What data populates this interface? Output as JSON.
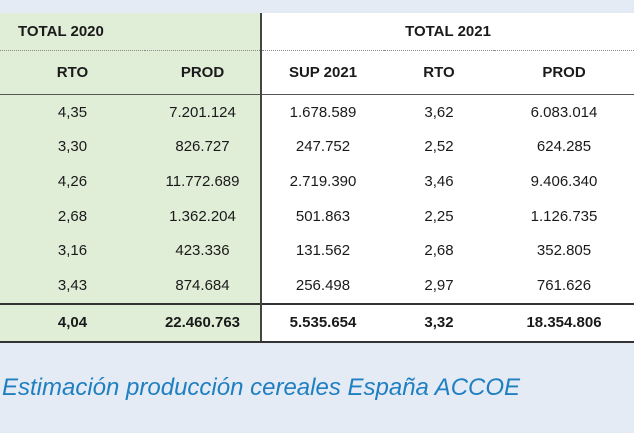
{
  "headers": {
    "group_2020": "TOTAL 2020",
    "group_2021": "TOTAL 2021",
    "columns": [
      "RTO",
      "PROD",
      "SUP 2021",
      "RTO",
      "PROD"
    ]
  },
  "rows": [
    [
      "4,35",
      "7.201.124",
      "1.678.589",
      "3,62",
      "6.083.014"
    ],
    [
      "3,30",
      "826.727",
      "247.752",
      "2,52",
      "624.285"
    ],
    [
      "4,26",
      "11.772.689",
      "2.719.390",
      "3,46",
      "9.406.340"
    ],
    [
      "2,68",
      "1.362.204",
      "501.863",
      "2,25",
      "1.126.735"
    ],
    [
      "3,16",
      "423.336",
      "131.562",
      "2,68",
      "352.805"
    ],
    [
      "3,43",
      "874.684",
      "256.498",
      "2,97",
      "761.626"
    ]
  ],
  "total": [
    "4,04",
    "22.460.763",
    "5.535.654",
    "3,32",
    "18.354.806"
  ],
  "caption": "Estimación producción cereales España ACCOE"
}
